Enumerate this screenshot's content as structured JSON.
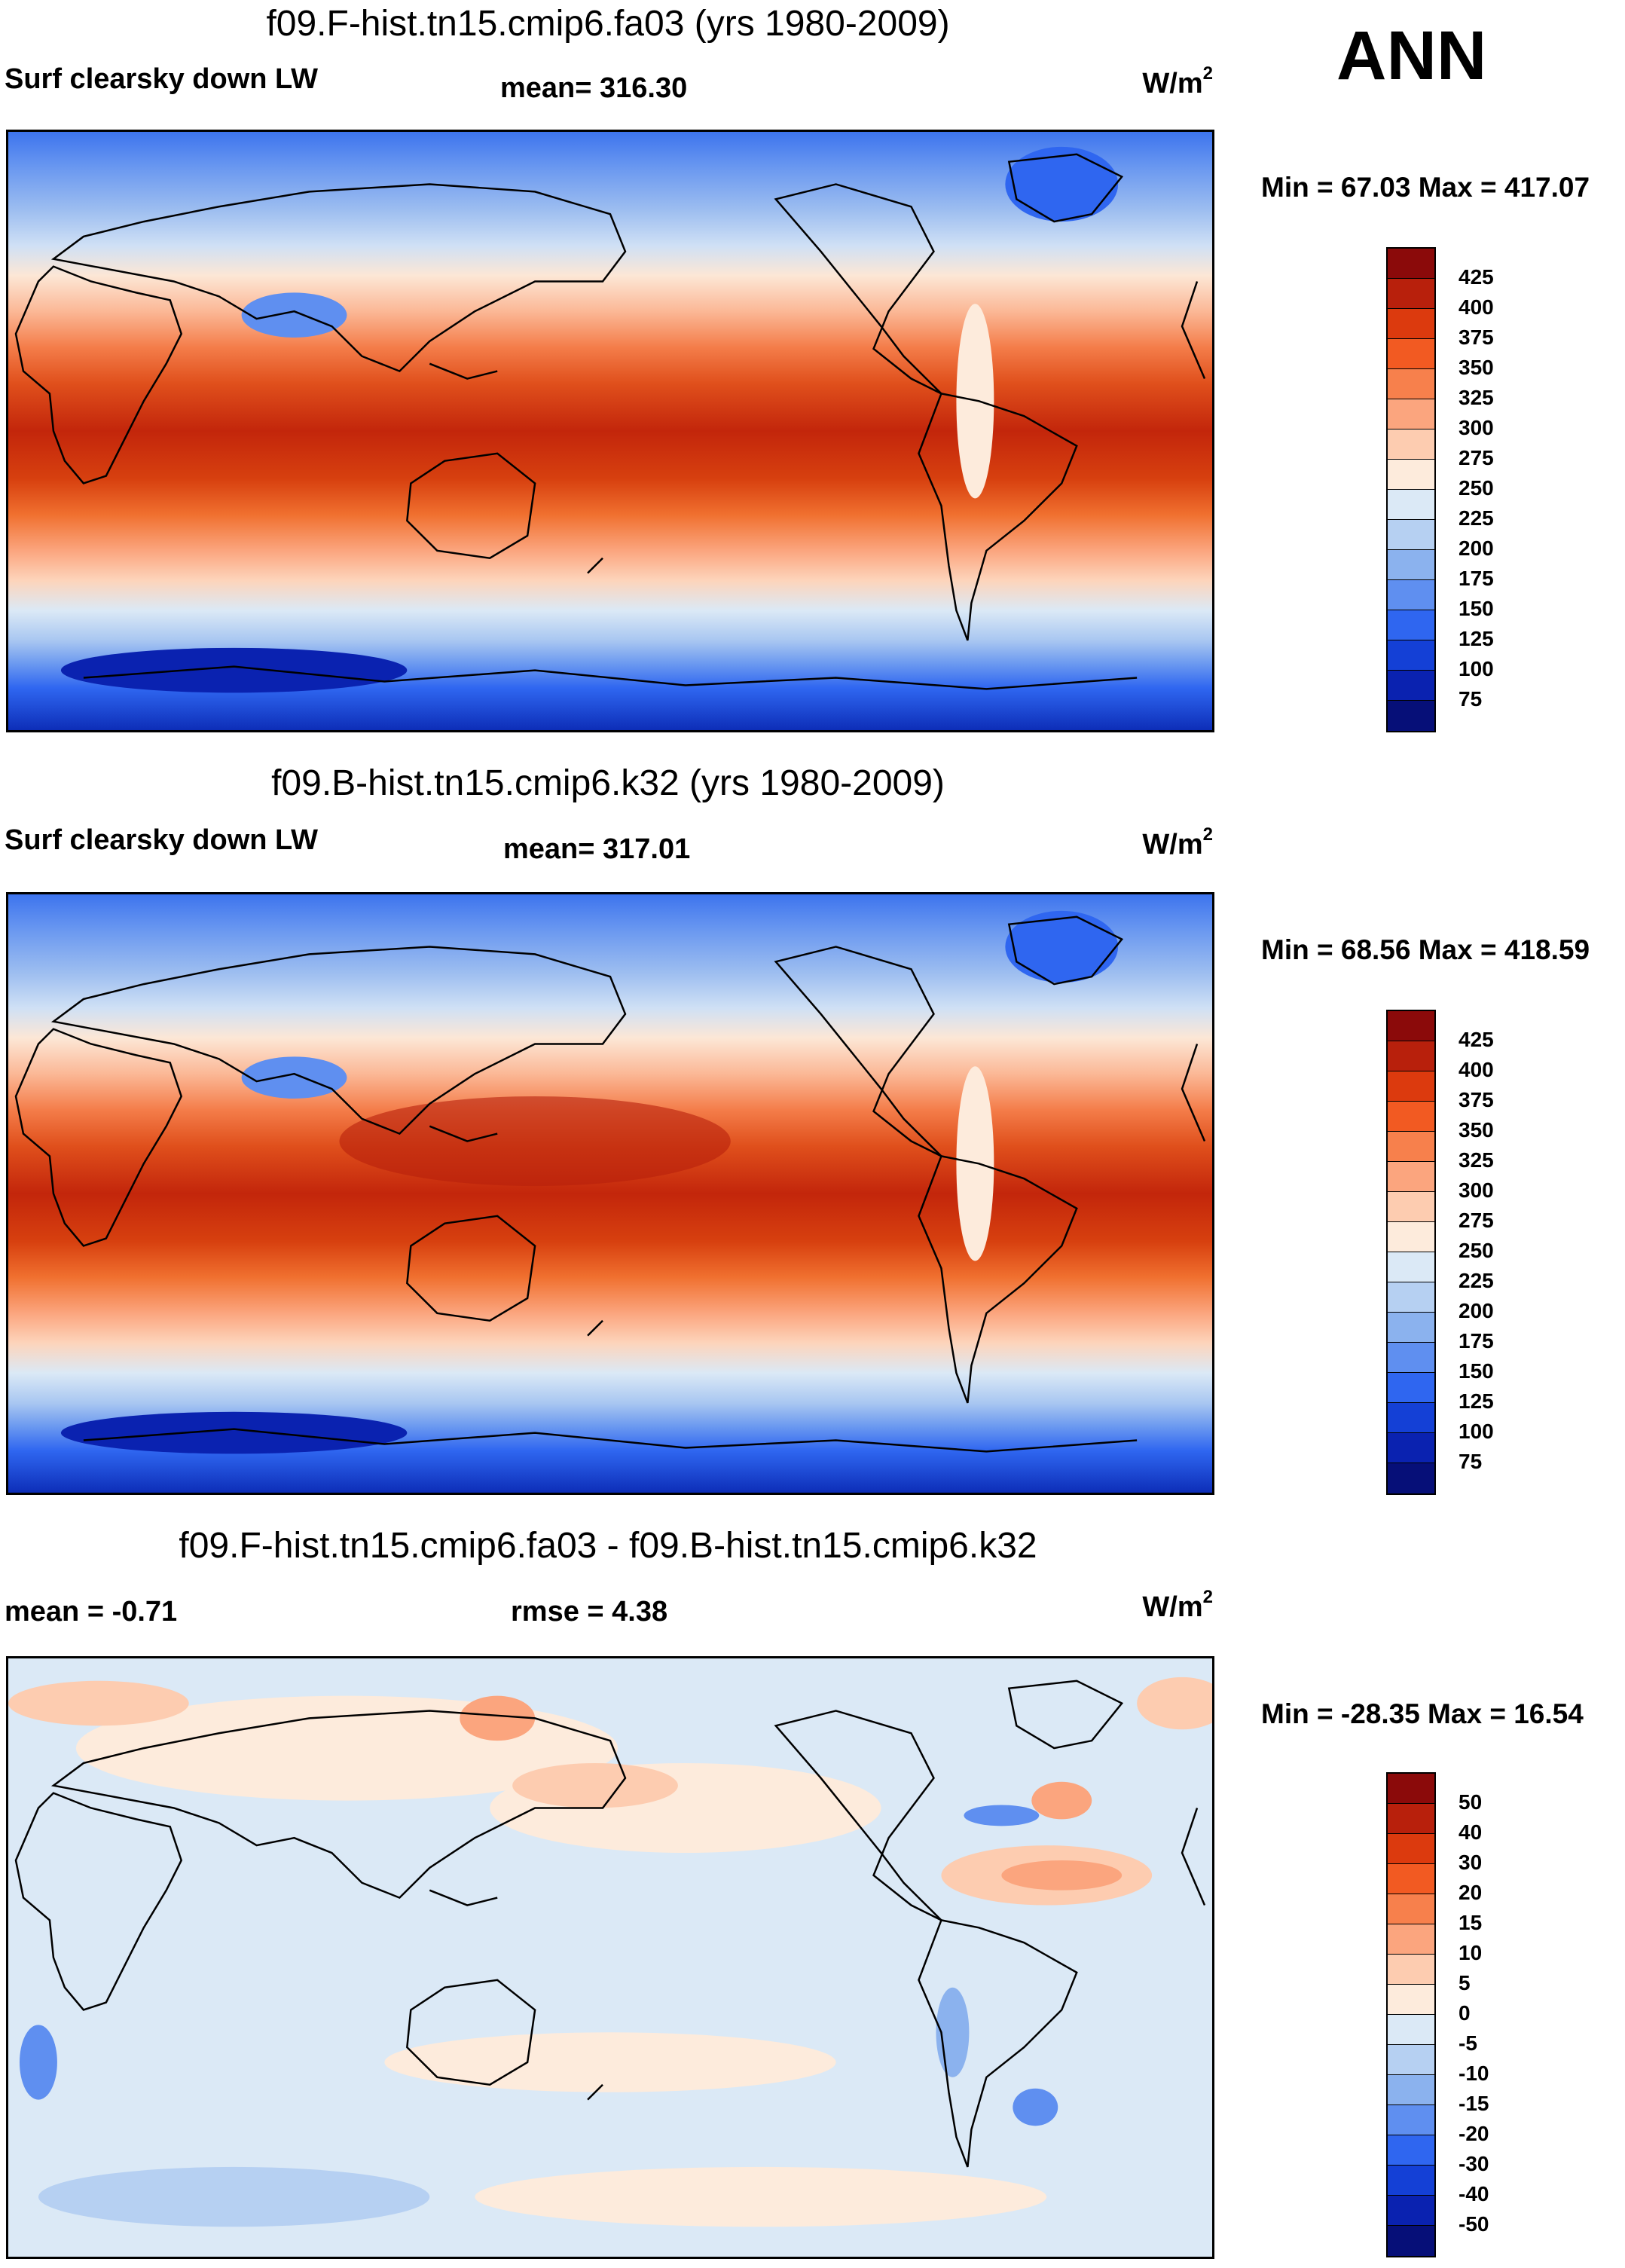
{
  "season": "ANN",
  "units_main": "W/m",
  "units_sup": "2",
  "panels": [
    {
      "title": "f09.F-hist.tn15.cmip6.fa03 (yrs 1980-2009)",
      "left_label": "Surf clearsky down LW",
      "stat_label": "mean= 316.30",
      "minmax": "Min =  67.03 Max = 417.07"
    },
    {
      "title": "f09.B-hist.tn15.cmip6.k32 (yrs 1980-2009)",
      "left_label": "Surf clearsky down LW",
      "stat_label": "mean= 317.01",
      "minmax": "Min =  68.56 Max = 418.59"
    },
    {
      "title": "f09.F-hist.tn15.cmip6.fa03 - f09.B-hist.tn15.cmip6.k32",
      "left_label": "mean =  -0.71",
      "stat_label": "rmse =   4.38",
      "minmax": "Min = -28.35 Max =  16.54"
    }
  ],
  "colorbar_main": {
    "labels": [
      "425",
      "400",
      "375",
      "350",
      "325",
      "300",
      "275",
      "250",
      "225",
      "200",
      "175",
      "150",
      "125",
      "100",
      "75"
    ],
    "colors": [
      "#8b0a0a",
      "#b8200c",
      "#dc3a0e",
      "#f25a22",
      "#f7804c",
      "#fba57e",
      "#fdccb0",
      "#fdebdc",
      "#dbe9f6",
      "#b6d0f2",
      "#8bb2ee",
      "#5f8ff0",
      "#2f66f0",
      "#1440d6",
      "#0a22b0",
      "#060f78"
    ]
  },
  "colorbar_diff": {
    "labels": [
      "50",
      "40",
      "30",
      "20",
      "15",
      "10",
      "5",
      "0",
      "-5",
      "-10",
      "-15",
      "-20",
      "-30",
      "-40",
      "-50"
    ],
    "colors": [
      "#8b0a0a",
      "#b8200c",
      "#dc3a0e",
      "#f25a22",
      "#f7804c",
      "#fba57e",
      "#fdccb0",
      "#fdebdc",
      "#dbe9f6",
      "#b6d0f2",
      "#8bb2ee",
      "#5f8ff0",
      "#2f66f0",
      "#1440d6",
      "#0a22b0",
      "#060f78"
    ]
  }
}
